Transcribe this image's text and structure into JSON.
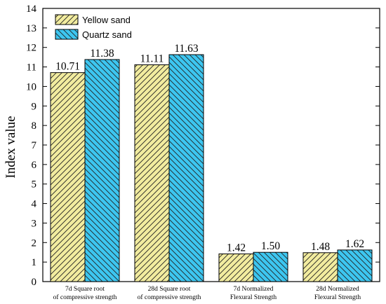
{
  "chart_data": {
    "type": "bar",
    "title": "",
    "xlabel": "",
    "ylabel": "Index value",
    "ylim": [
      0,
      14
    ],
    "yticks": [
      0,
      1,
      2,
      3,
      4,
      5,
      6,
      7,
      8,
      9,
      10,
      11,
      12,
      13,
      14
    ],
    "grid": false,
    "legend_position": "top-left",
    "categories": [
      [
        "7d  Square root",
        "of compressive strength"
      ],
      [
        "28d  Square root",
        "of compressive strength"
      ],
      [
        "7d Normalized",
        "Flexural Strength"
      ],
      [
        "28d Normalized",
        "Flexural Strength"
      ]
    ],
    "series": [
      {
        "name": "Yellow sand",
        "values": [
          10.71,
          11.11,
          1.42,
          1.48
        ],
        "labels": [
          "10.71",
          "11.11",
          "1.42",
          "1.48"
        ],
        "color": "#f2ec9f",
        "hatch": "forward-diagonal"
      },
      {
        "name": "Quartz sand",
        "values": [
          11.38,
          11.63,
          1.5,
          1.62
        ],
        "labels": [
          "11.38",
          "11.63",
          "1.50",
          "1.62"
        ],
        "color": "#3dc6f0",
        "hatch": "backward-diagonal"
      }
    ]
  }
}
